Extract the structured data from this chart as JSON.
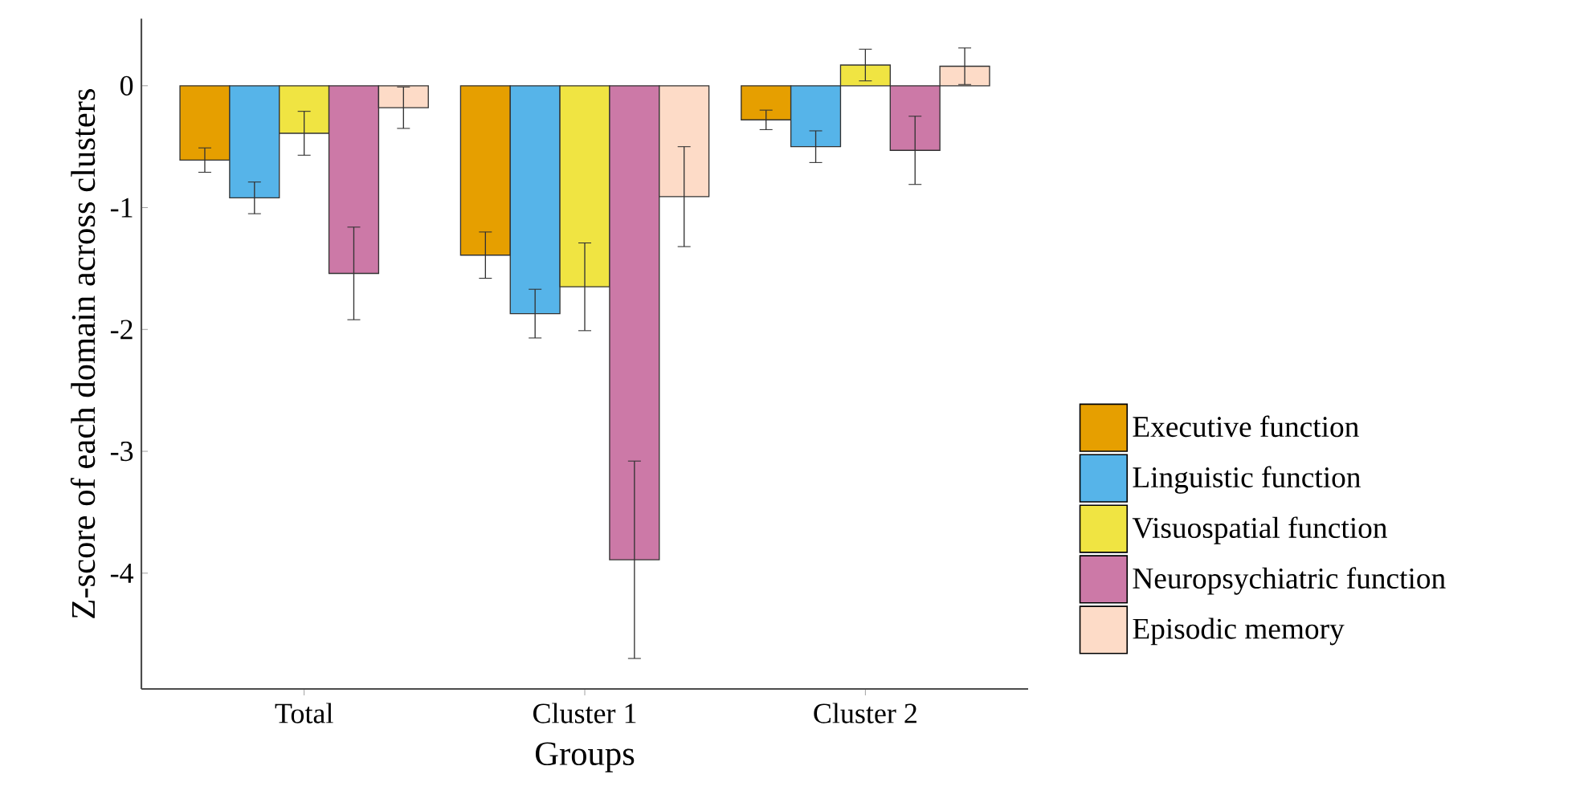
{
  "chart_data": {
    "type": "bar",
    "xlabel": "Groups",
    "ylabel": "Z-score of each domain across clusters",
    "categories": [
      "Total",
      "Cluster 1",
      "Cluster 2"
    ],
    "series": [
      {
        "name": "Executive function",
        "color": "#e69f00",
        "values": [
          -0.61,
          -1.39,
          -0.28
        ],
        "errors": [
          0.1,
          0.19,
          0.08
        ]
      },
      {
        "name": "Linguistic function",
        "color": "#56b4e9",
        "values": [
          -0.92,
          -1.87,
          -0.5
        ],
        "errors": [
          0.13,
          0.2,
          0.13
        ]
      },
      {
        "name": "Visuospatial function",
        "color": "#f0e442",
        "values": [
          -0.39,
          -1.65,
          0.17
        ],
        "errors": [
          0.18,
          0.36,
          0.13
        ]
      },
      {
        "name": "Neuropsychiatric function",
        "color": "#cc79a7",
        "values": [
          -1.54,
          -3.89,
          -0.53
        ],
        "errors": [
          0.38,
          0.81,
          0.28
        ]
      },
      {
        "name": "Episodic memory",
        "color": "#fddbc7",
        "values": [
          -0.18,
          -0.91,
          0.16
        ],
        "errors": [
          0.17,
          0.41,
          0.15
        ]
      }
    ],
    "ylim": [
      -4.95,
      0.55
    ],
    "yticks": [
      -4,
      -3,
      -2,
      -1,
      0
    ],
    "legend": "right"
  }
}
